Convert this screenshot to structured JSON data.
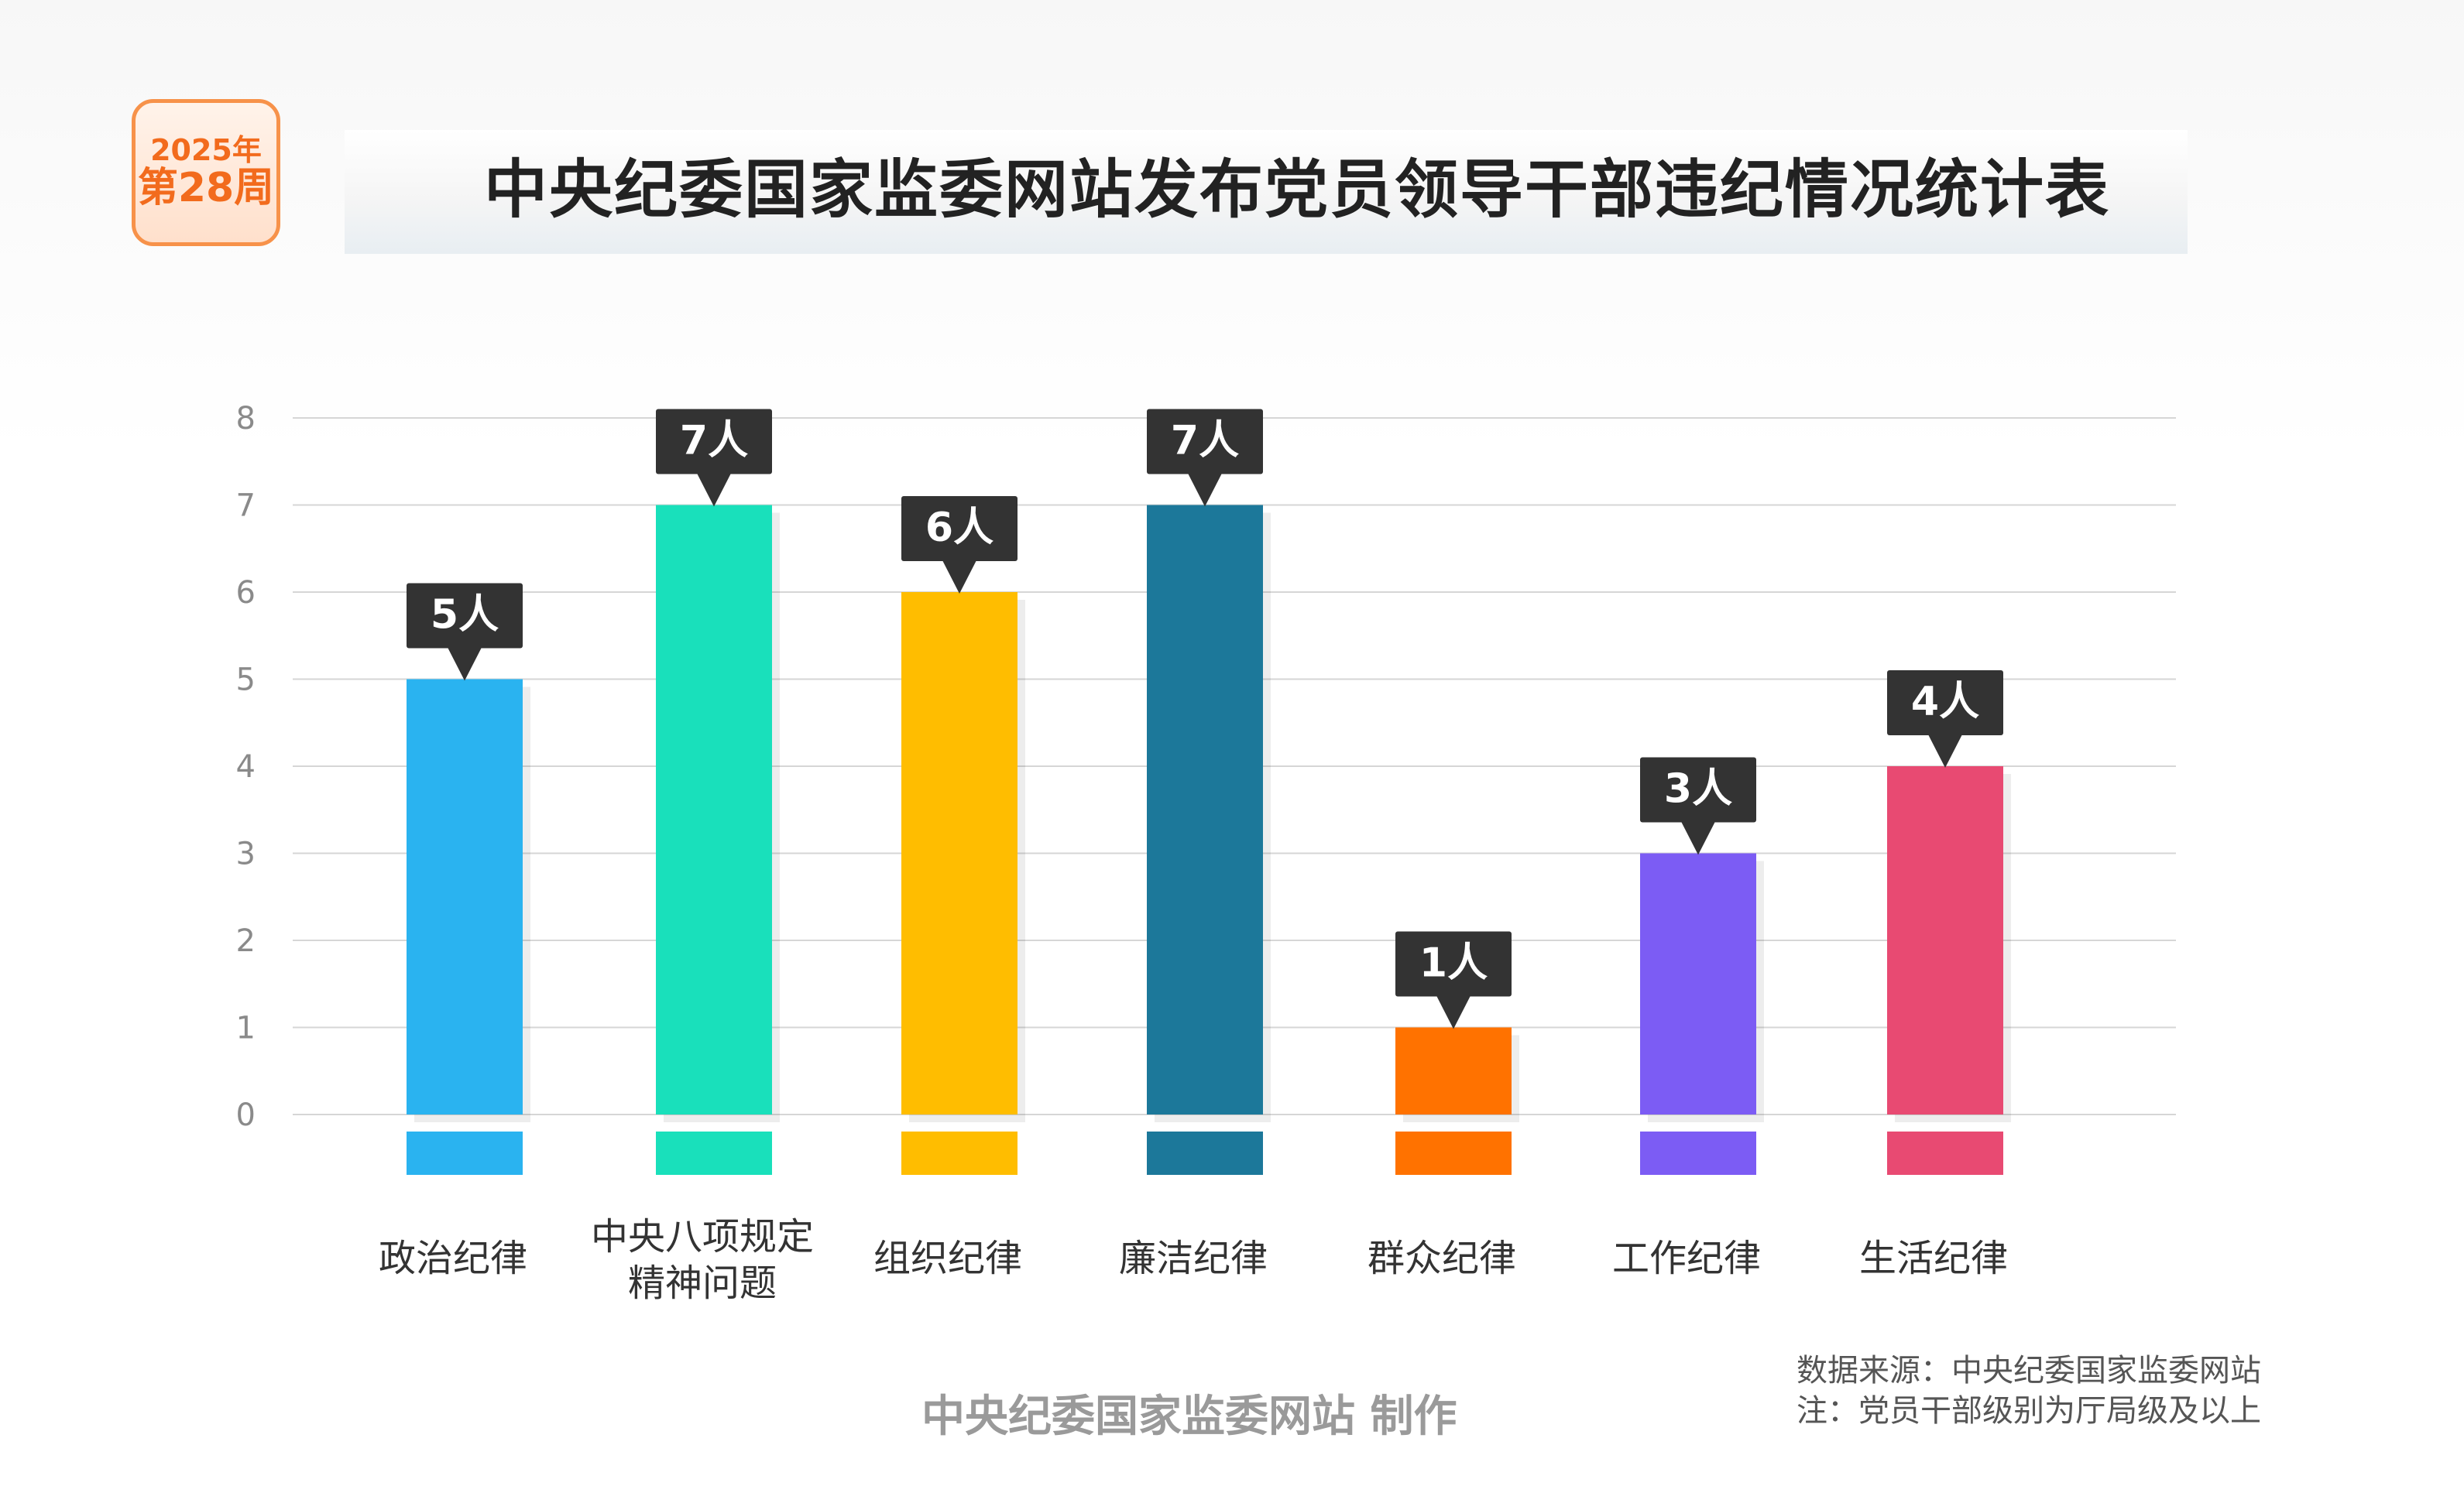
{
  "badge": {
    "year_line": "2025年",
    "week_line": "第28周"
  },
  "title": "中央纪委国家监委网站发布党员领导干部违纪情况统计表",
  "footer": {
    "producer": "中央纪委国家监委网站 制作",
    "source_note": "数据来源：中央纪委国家监委网站",
    "level_note": "注：党员干部级别为厅局级及以上"
  },
  "chart_data": {
    "type": "bar",
    "categories": [
      "政治纪律",
      "中央八项规定\n精神问题",
      "组织纪律",
      "廉洁纪律",
      "群众纪律",
      "工作纪律",
      "生活纪律"
    ],
    "values": [
      5,
      7,
      6,
      7,
      1,
      3,
      4
    ],
    "data_labels": [
      "5人",
      "7人",
      "6人",
      "7人",
      "1人",
      "3人",
      "4人"
    ],
    "colors": [
      "#2ab3f0",
      "#19e0bb",
      "#ffbd00",
      "#1c789a",
      "#ff7200",
      "#7c5cf4",
      "#e84a72"
    ],
    "yticks": [
      0,
      1,
      2,
      3,
      4,
      5,
      6,
      7,
      8
    ],
    "ylim": [
      0,
      8
    ],
    "grid": true,
    "label_color": "#333333"
  }
}
